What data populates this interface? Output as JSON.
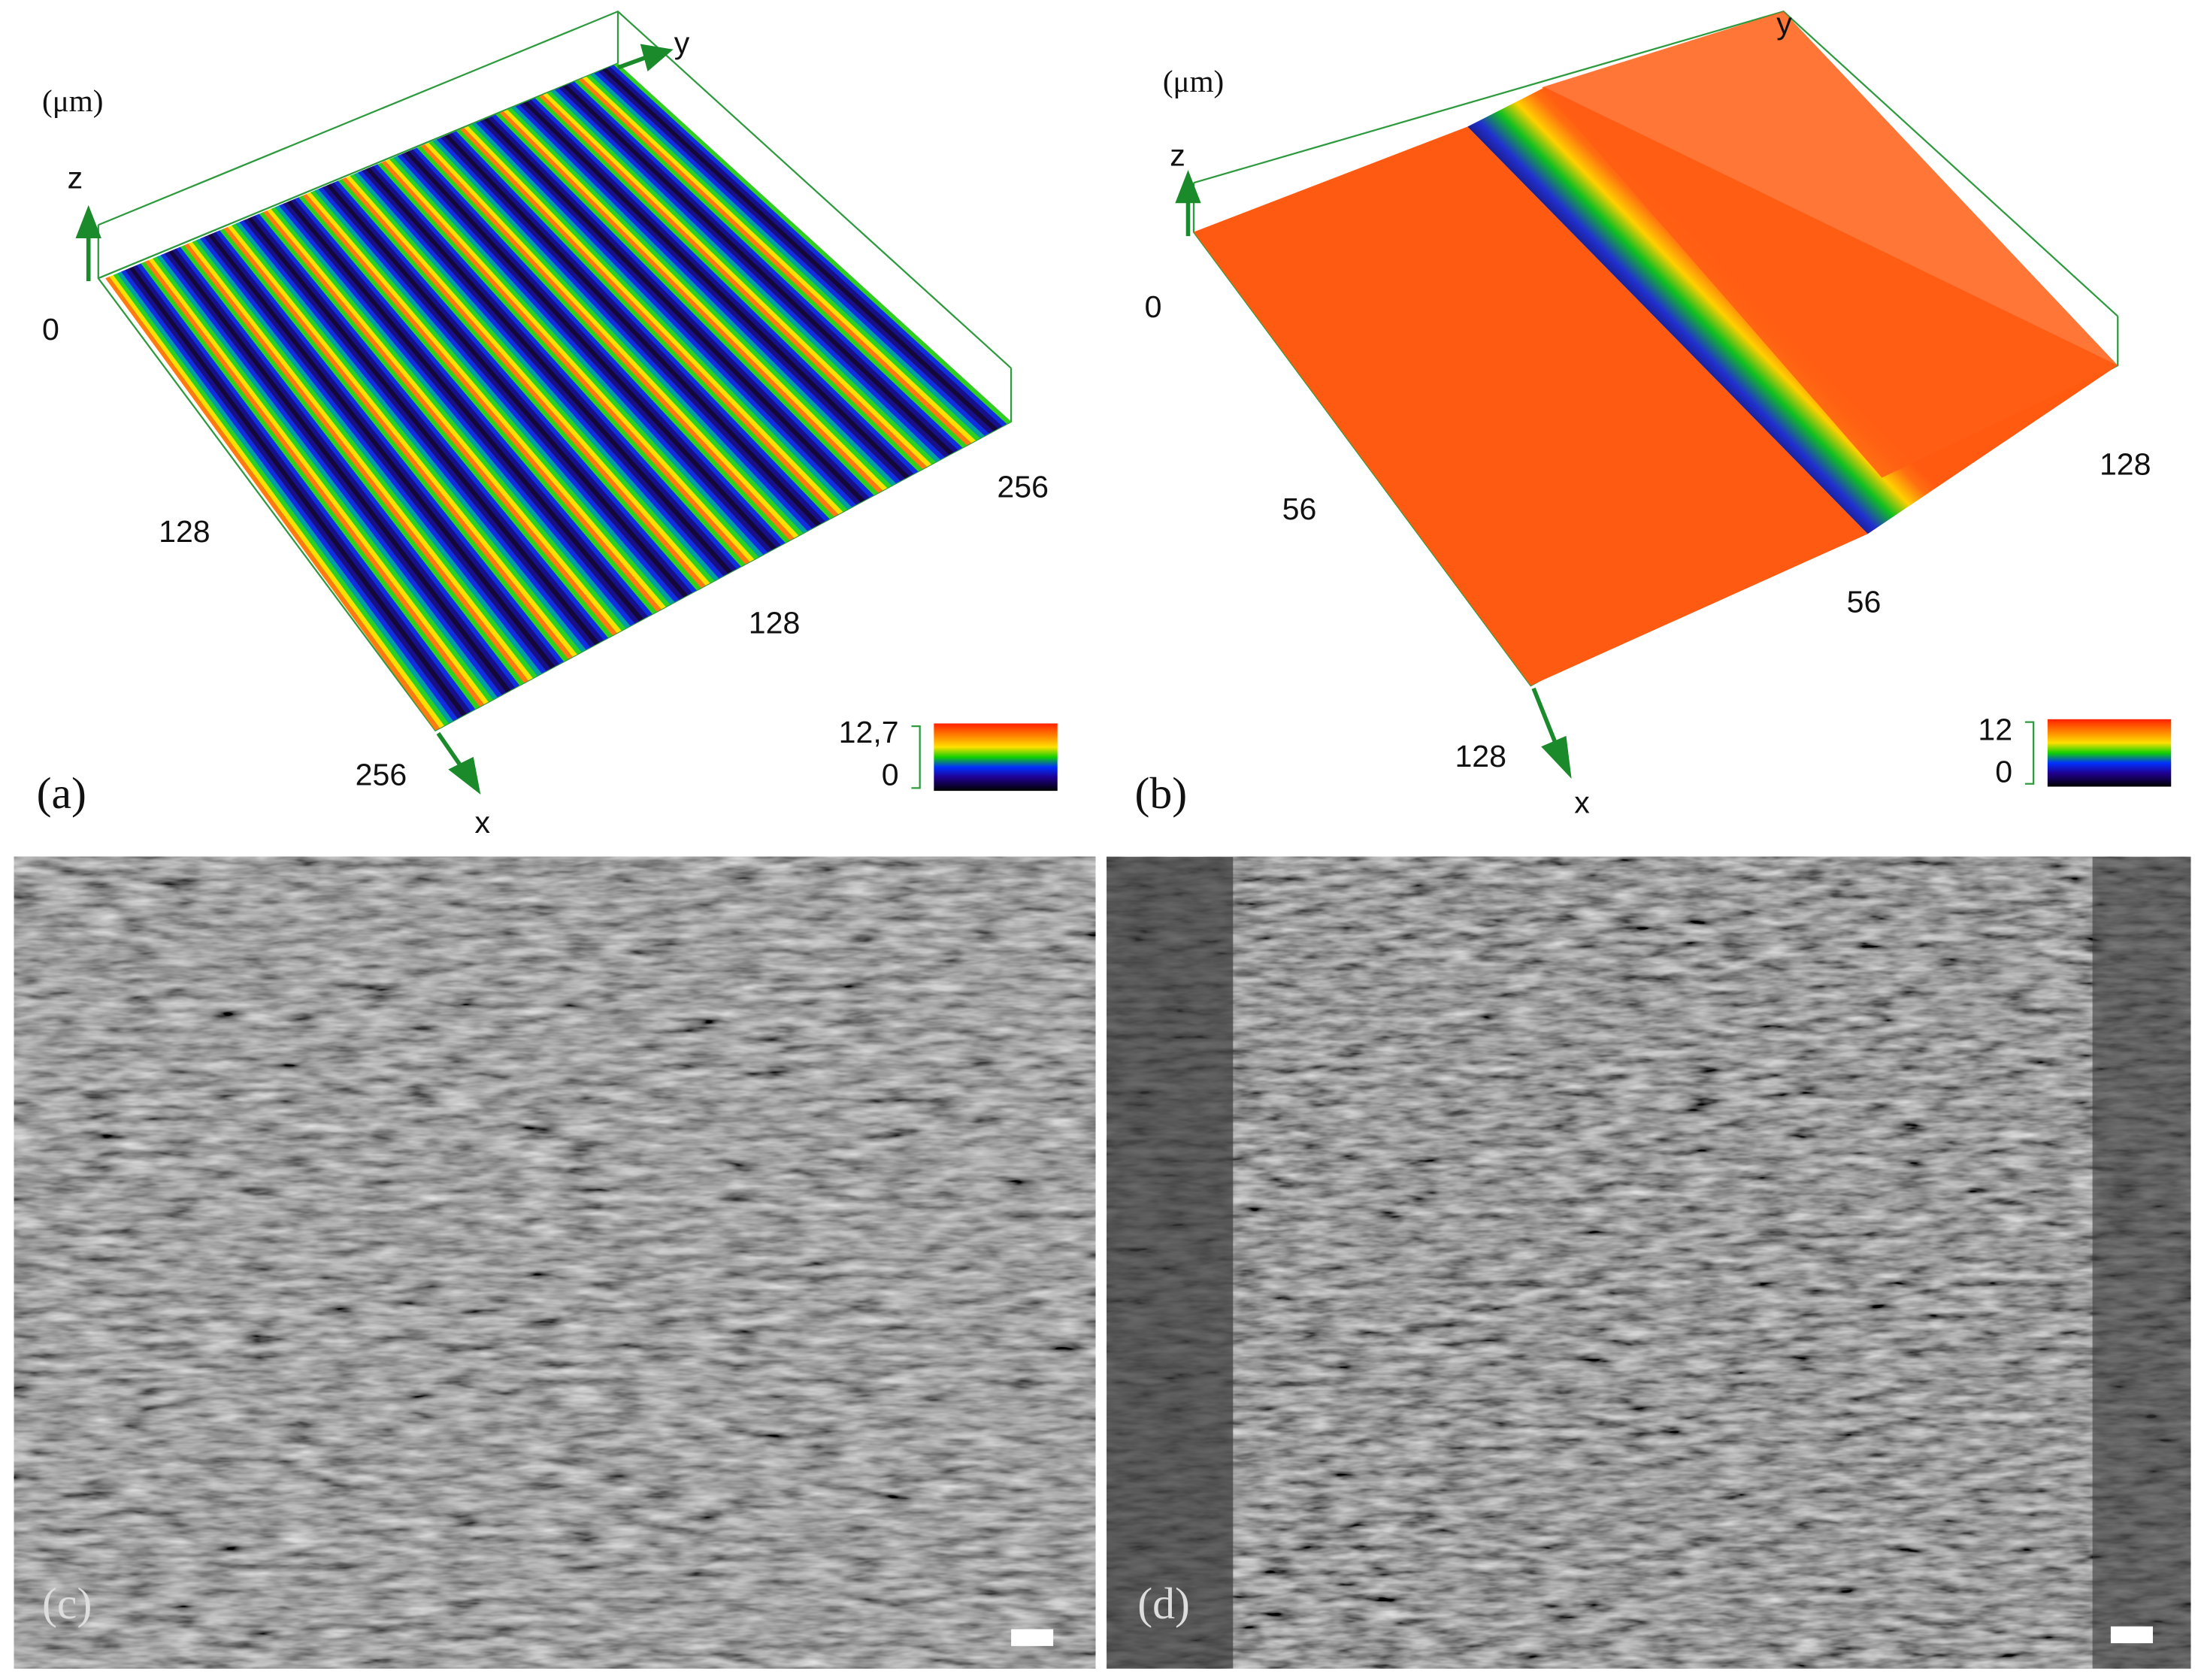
{
  "panels": [
    {
      "label": "(a)",
      "unit": "(μm)",
      "axes": {
        "z": "z",
        "y": "y",
        "x": "x"
      },
      "tick_labels": [
        "0",
        "128",
        "256",
        "128",
        "256"
      ],
      "colorbar": [
        "12,7",
        "0"
      ]
    },
    {
      "label": "(b)",
      "unit": "(μm)",
      "axes": {
        "z": "z",
        "y": "y",
        "x": "x"
      },
      "tick_labels": [
        "0",
        "56",
        "128",
        "56",
        "128"
      ],
      "colorbar": [
        "12",
        "0"
      ]
    },
    {
      "label": "(c)"
    },
    {
      "label": "(d)"
    }
  ]
}
